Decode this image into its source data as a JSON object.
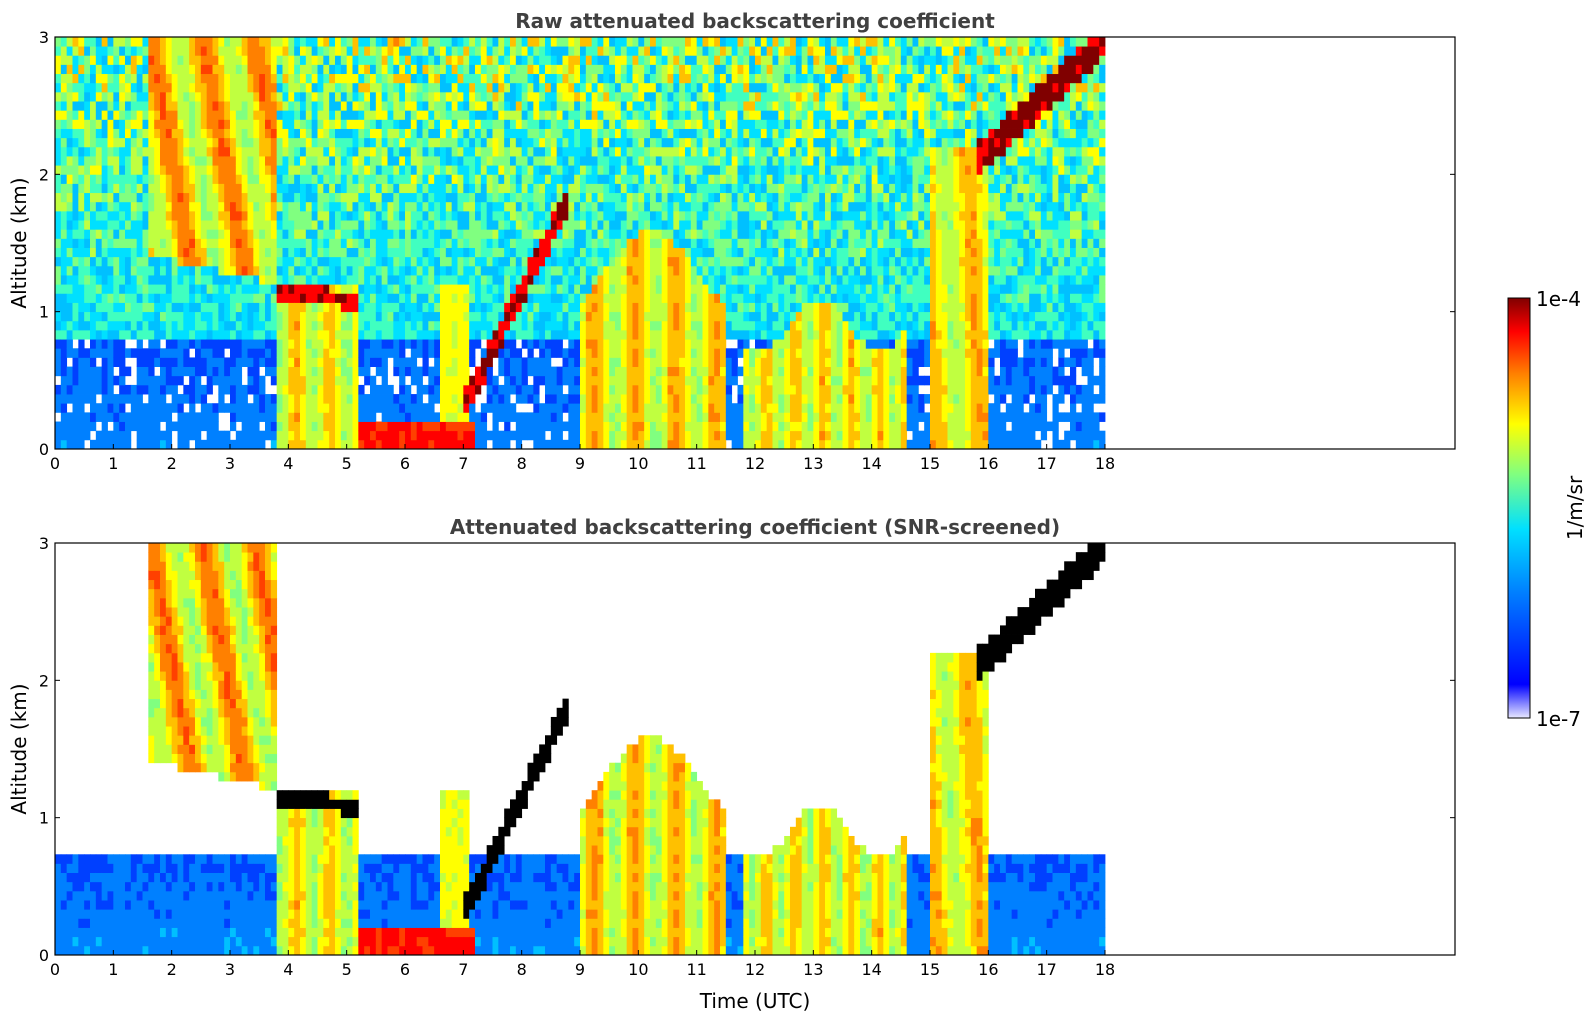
{
  "chart_data": [
    {
      "type": "heatmap",
      "title": "Raw attenuated backscattering coefficient",
      "xlabel": "",
      "ylabel": "Altitude (km)",
      "xlim": [
        0,
        24
      ],
      "ylim": [
        0,
        3
      ],
      "data_extent_x": [
        0,
        18
      ],
      "x_ticks": [
        "0",
        "1",
        "2",
        "3",
        "4",
        "5",
        "6",
        "7",
        "8",
        "9",
        "10",
        "11",
        "12",
        "13",
        "14",
        "15",
        "16",
        "17",
        "18"
      ],
      "y_ticks": [
        "0",
        "1",
        "2",
        "3"
      ],
      "scale": "log",
      "colormap": "jet"
    },
    {
      "type": "heatmap",
      "title": "Attenuated backscattering coefficient (SNR-screened)",
      "xlabel": "Time (UTC)",
      "ylabel": "Altitude (km)",
      "xlim": [
        0,
        24
      ],
      "ylim": [
        0,
        3
      ],
      "data_extent_x": [
        0,
        18
      ],
      "x_ticks": [
        "0",
        "1",
        "2",
        "3",
        "4",
        "5",
        "6",
        "7",
        "8",
        "9",
        "10",
        "11",
        "12",
        "13",
        "14",
        "15",
        "16",
        "17",
        "18"
      ],
      "y_ticks": [
        "0",
        "1",
        "2",
        "3"
      ],
      "scale": "log",
      "colormap": "jet"
    }
  ],
  "colorbar": {
    "label": "1/m/sr",
    "min_label": "1e-7",
    "max_label": "1e-4",
    "scale": "log",
    "colors": [
      "#e8e8ff",
      "#0000ff",
      "#0080ff",
      "#00e0ff",
      "#80ff80",
      "#ffff00",
      "#ff8000",
      "#ff0000",
      "#800000"
    ]
  }
}
